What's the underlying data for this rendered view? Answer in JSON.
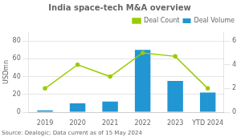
{
  "chart_data": {
    "type": "bar",
    "title": "India space-tech M&A overview",
    "ylabel": "USDmn",
    "annotations": [
      "Source: Dealogic; Data current as of 15 May 2024"
    ],
    "categories": [
      "2019",
      "2020",
      "2021",
      "2022",
      "2023",
      "YTD 2024"
    ],
    "series": [
      {
        "name": "Deal Volume",
        "type": "bar",
        "color": "#2196d3",
        "values": [
          2,
          10,
          12,
          70,
          35,
          22
        ]
      },
      {
        "name": "Deal Count",
        "type": "line",
        "axis": "y2",
        "color": "#99cc00",
        "marker": "circle",
        "line_style": "solid",
        "values": [
          2,
          4,
          3,
          5,
          4.7,
          2
        ]
      }
    ],
    "ylim": [
      0,
      90
    ],
    "yticks": [
      0,
      20,
      40,
      60,
      80
    ],
    "y2lim": [
      0,
      6.75
    ],
    "y2ticks": [
      0,
      2,
      4,
      6
    ],
    "grid": true,
    "legend": "upper right"
  }
}
